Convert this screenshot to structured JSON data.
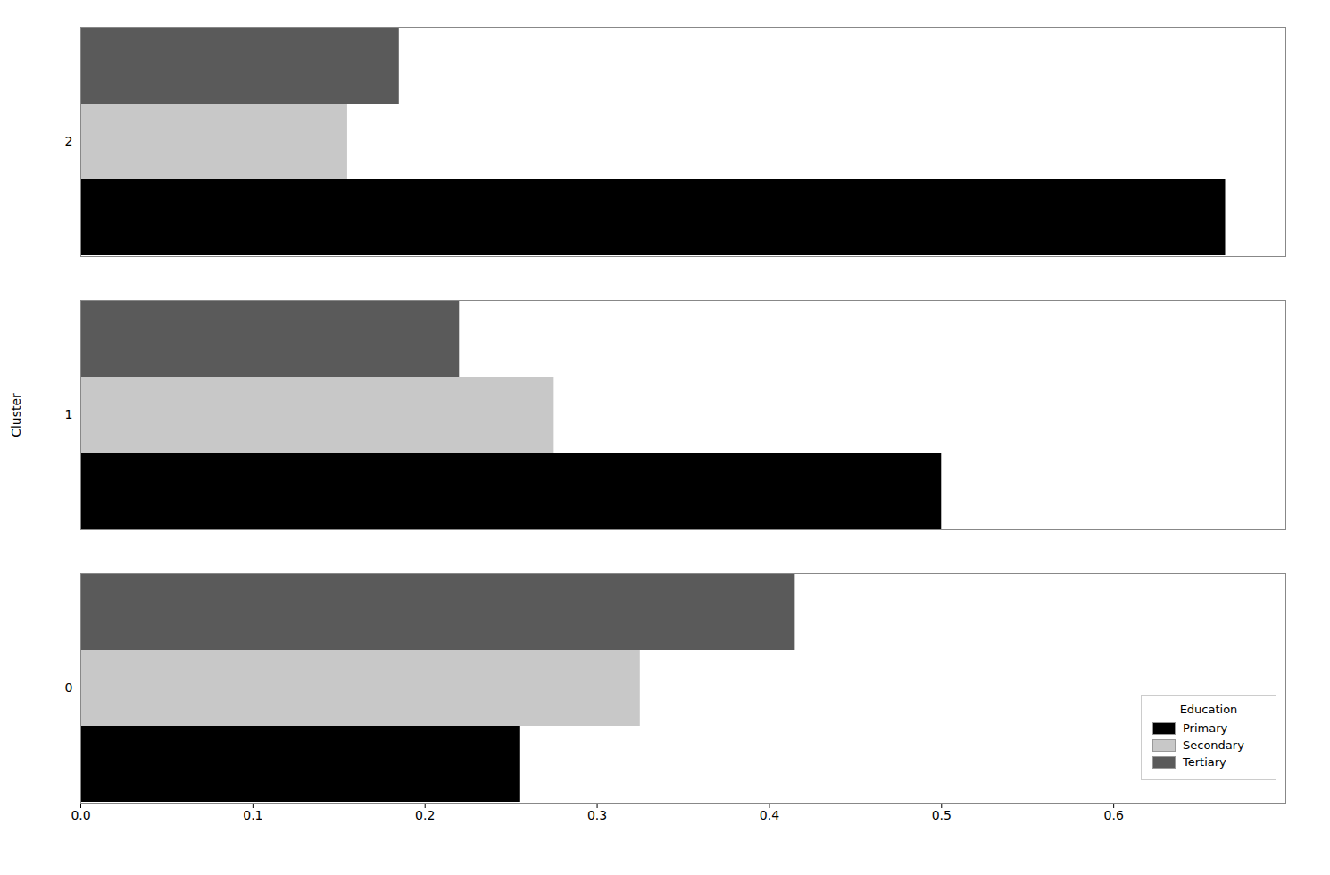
{
  "chart_data": {
    "type": "bar",
    "orientation": "horizontal",
    "categories": [
      "0",
      "1",
      "2"
    ],
    "series": [
      {
        "name": "Primary",
        "color": "#000000",
        "values": [
          0.255,
          0.5,
          0.665
        ]
      },
      {
        "name": "Secondary",
        "color": "#c8c8c8",
        "values": [
          0.325,
          0.275,
          0.155
        ]
      },
      {
        "name": "Tertiary",
        "color": "#5a5a5a",
        "values": [
          0.415,
          0.22,
          0.185
        ]
      }
    ],
    "ylabel": "Cluster",
    "legend_title": "Education",
    "legend": "lower right",
    "grid": false,
    "xlim": [
      0.0,
      0.7
    ],
    "xticks": [
      {
        "value": 0.0,
        "label": "0.0"
      },
      {
        "value": 0.1,
        "label": "0.1"
      },
      {
        "value": 0.2,
        "label": "0.2"
      },
      {
        "value": 0.3,
        "label": "0.3"
      },
      {
        "value": 0.4,
        "label": "0.4"
      },
      {
        "value": 0.5,
        "label": "0.5"
      },
      {
        "value": 0.6,
        "label": "0.6"
      }
    ]
  }
}
